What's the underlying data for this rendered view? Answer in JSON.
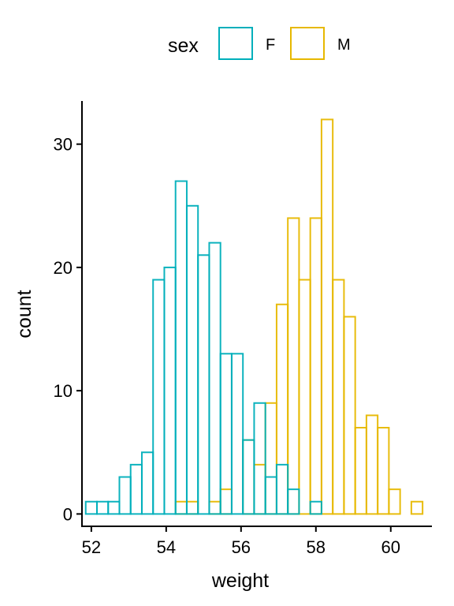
{
  "chart_data": {
    "type": "histogram",
    "xlabel": "weight",
    "ylabel": "count",
    "xlim": [
      51.75,
      61.1
    ],
    "ylim": [
      -1,
      33.5
    ],
    "x_ticks": [
      52,
      54,
      56,
      58,
      60
    ],
    "y_ticks": [
      0,
      10,
      20,
      30
    ],
    "bin_width": 0.3,
    "legend": {
      "title": "sex",
      "position": "top"
    },
    "series": [
      {
        "name": "F",
        "color": "#00AFBB",
        "bins": [
          {
            "x": 52.0,
            "count": 1
          },
          {
            "x": 52.3,
            "count": 1
          },
          {
            "x": 52.6,
            "count": 1
          },
          {
            "x": 52.9,
            "count": 3
          },
          {
            "x": 53.2,
            "count": 4
          },
          {
            "x": 53.5,
            "count": 5
          },
          {
            "x": 53.8,
            "count": 19
          },
          {
            "x": 54.1,
            "count": 20
          },
          {
            "x": 54.4,
            "count": 27
          },
          {
            "x": 54.7,
            "count": 25
          },
          {
            "x": 55.0,
            "count": 21
          },
          {
            "x": 55.3,
            "count": 22
          },
          {
            "x": 55.6,
            "count": 13
          },
          {
            "x": 55.9,
            "count": 13
          },
          {
            "x": 56.2,
            "count": 6
          },
          {
            "x": 56.5,
            "count": 9
          },
          {
            "x": 56.8,
            "count": 3
          },
          {
            "x": 57.1,
            "count": 4
          },
          {
            "x": 57.4,
            "count": 2
          },
          {
            "x": 57.7,
            "count": 0
          },
          {
            "x": 58.0,
            "count": 1
          }
        ]
      },
      {
        "name": "M",
        "color": "#E7B800",
        "bins": [
          {
            "x": 54.4,
            "count": 1
          },
          {
            "x": 54.7,
            "count": 1
          },
          {
            "x": 55.0,
            "count": 0
          },
          {
            "x": 55.3,
            "count": 1
          },
          {
            "x": 55.6,
            "count": 2
          },
          {
            "x": 55.9,
            "count": 0
          },
          {
            "x": 56.2,
            "count": 6
          },
          {
            "x": 56.5,
            "count": 4
          },
          {
            "x": 56.8,
            "count": 9
          },
          {
            "x": 57.1,
            "count": 17
          },
          {
            "x": 57.4,
            "count": 24
          },
          {
            "x": 57.7,
            "count": 19
          },
          {
            "x": 58.0,
            "count": 24
          },
          {
            "x": 58.3,
            "count": 32
          },
          {
            "x": 58.6,
            "count": 19
          },
          {
            "x": 58.9,
            "count": 16
          },
          {
            "x": 59.2,
            "count": 7
          },
          {
            "x": 59.5,
            "count": 8
          },
          {
            "x": 59.8,
            "count": 7
          },
          {
            "x": 60.1,
            "count": 2
          },
          {
            "x": 60.4,
            "count": 0
          },
          {
            "x": 60.7,
            "count": 1
          }
        ]
      }
    ]
  }
}
